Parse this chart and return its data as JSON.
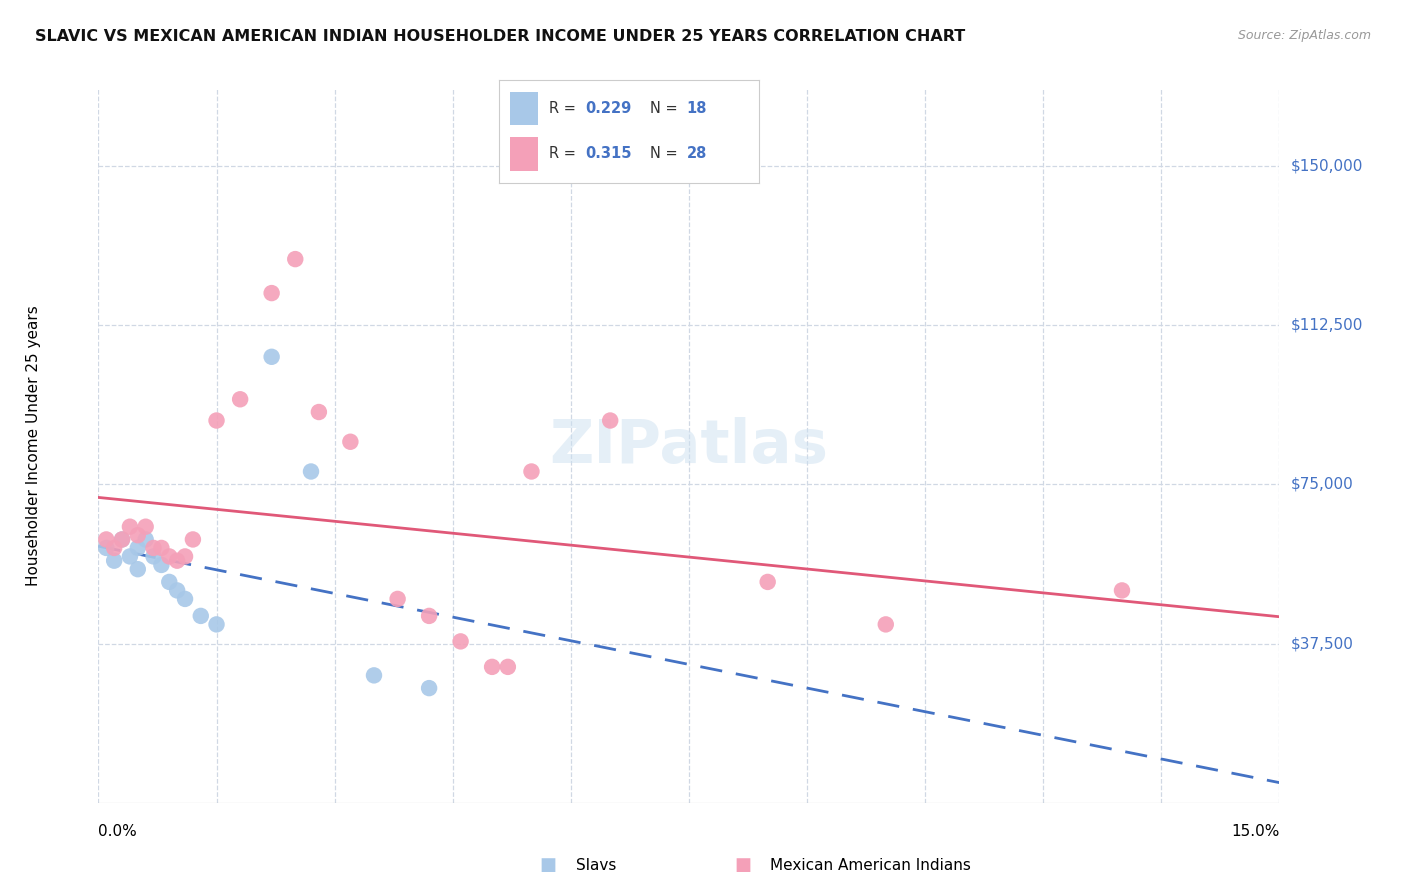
{
  "title": "SLAVIC VS MEXICAN AMERICAN INDIAN HOUSEHOLDER INCOME UNDER 25 YEARS CORRELATION CHART",
  "source": "Source: ZipAtlas.com",
  "ylabel": "Householder Income Under 25 years",
  "legend_label1": "Slavs",
  "legend_label2": "Mexican American Indians",
  "legend_r1": "0.229",
  "legend_n1": "18",
  "legend_r2": "0.315",
  "legend_n2": "28",
  "ytick_values": [
    37500,
    75000,
    112500,
    150000
  ],
  "ytick_labels": [
    "$37,500",
    "$75,000",
    "$112,500",
    "$150,000"
  ],
  "xmin": 0.0,
  "xmax": 0.15,
  "ymin": 0,
  "ymax": 168000,
  "watermark": "ZIPatlas",
  "slavs_color": "#a8c8e8",
  "mexicans_color": "#f4a0b8",
  "slavs_line_color": "#4472c4",
  "mexicans_line_color": "#e05878",
  "grid_color": "#d0d8e4",
  "right_label_color": "#4472c4",
  "slavs_x": [
    0.001,
    0.002,
    0.003,
    0.004,
    0.005,
    0.005,
    0.006,
    0.007,
    0.008,
    0.009,
    0.01,
    0.011,
    0.013,
    0.015,
    0.022,
    0.027,
    0.035,
    0.042
  ],
  "slavs_y": [
    60000,
    57000,
    62000,
    58000,
    55000,
    60000,
    62000,
    58000,
    56000,
    52000,
    50000,
    48000,
    44000,
    42000,
    105000,
    78000,
    30000,
    27000
  ],
  "mexicans_x": [
    0.001,
    0.002,
    0.003,
    0.004,
    0.005,
    0.006,
    0.007,
    0.008,
    0.009,
    0.01,
    0.011,
    0.012,
    0.015,
    0.018,
    0.022,
    0.025,
    0.028,
    0.032,
    0.038,
    0.042,
    0.046,
    0.05,
    0.052,
    0.055,
    0.065,
    0.085,
    0.1,
    0.13
  ],
  "mexicans_y": [
    62000,
    60000,
    62000,
    65000,
    63000,
    65000,
    60000,
    60000,
    58000,
    57000,
    58000,
    62000,
    90000,
    95000,
    120000,
    128000,
    92000,
    85000,
    48000,
    44000,
    38000,
    32000,
    32000,
    78000,
    90000,
    52000,
    42000,
    50000
  ]
}
